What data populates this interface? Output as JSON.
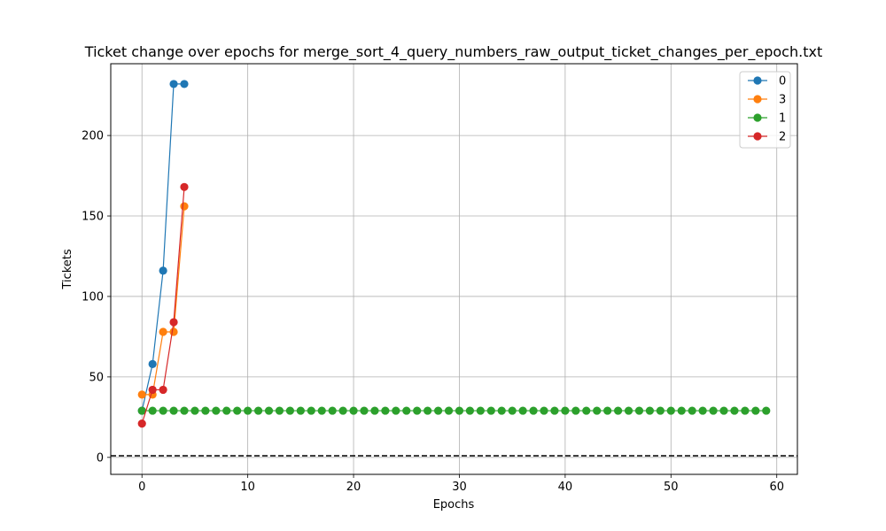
{
  "chart_data": {
    "type": "line",
    "title": "Ticket change over epochs for merge_sort_4_query_numbers_raw_output_ticket_changes_per_epoch.txt",
    "xlabel": "Epochs",
    "ylabel": "Tickets",
    "xlim": [
      -2.95,
      61.95
    ],
    "ylim": [
      -10.55,
      244.6
    ],
    "x_ticks": [
      0,
      10,
      20,
      30,
      40,
      50,
      60
    ],
    "y_ticks": [
      0,
      50,
      100,
      150,
      200
    ],
    "grid": true,
    "legend_position": "top-right",
    "reference_line": {
      "y": 1,
      "style": "dashed",
      "color": "#000000"
    },
    "series": [
      {
        "name": "0",
        "color": "#1f77b4",
        "x": [
          0,
          1,
          2,
          3,
          4
        ],
        "y": [
          29,
          58,
          116,
          232,
          232
        ]
      },
      {
        "name": "3",
        "color": "#ff7f0e",
        "x": [
          0,
          1,
          2,
          3,
          4
        ],
        "y": [
          39,
          39,
          78,
          78,
          156
        ]
      },
      {
        "name": "1",
        "color": "#2ca02c",
        "x": [
          0,
          1,
          2,
          3,
          4,
          5,
          6,
          7,
          8,
          9,
          10,
          11,
          12,
          13,
          14,
          15,
          16,
          17,
          18,
          19,
          20,
          21,
          22,
          23,
          24,
          25,
          26,
          27,
          28,
          29,
          30,
          31,
          32,
          33,
          34,
          35,
          36,
          37,
          38,
          39,
          40,
          41,
          42,
          43,
          44,
          45,
          46,
          47,
          48,
          49,
          50,
          51,
          52,
          53,
          54,
          55,
          56,
          57,
          58,
          59
        ],
        "y": [
          29,
          29,
          29,
          29,
          29,
          29,
          29,
          29,
          29,
          29,
          29,
          29,
          29,
          29,
          29,
          29,
          29,
          29,
          29,
          29,
          29,
          29,
          29,
          29,
          29,
          29,
          29,
          29,
          29,
          29,
          29,
          29,
          29,
          29,
          29,
          29,
          29,
          29,
          29,
          29,
          29,
          29,
          29,
          29,
          29,
          29,
          29,
          29,
          29,
          29,
          29,
          29,
          29,
          29,
          29,
          29,
          29,
          29,
          29,
          29
        ]
      },
      {
        "name": "2",
        "color": "#d62728",
        "x": [
          0,
          1,
          2,
          3,
          4
        ],
        "y": [
          21,
          42,
          42,
          84,
          168
        ]
      }
    ]
  }
}
